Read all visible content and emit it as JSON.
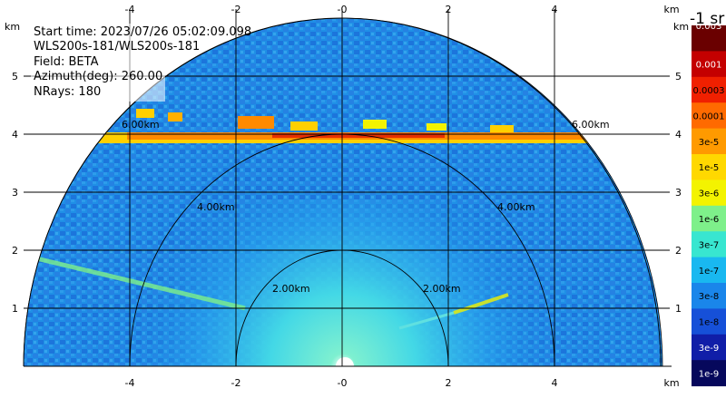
{
  "info": {
    "start_time": "Start time: 2023/07/26 05:02:09.098",
    "instrument": "WLS200s-181/WLS200s-181",
    "field": "Field: BETA",
    "azimuth": "Azimuth(deg): 260.00",
    "nrays": "NRays: 180"
  },
  "axes": {
    "unit": "km",
    "x_ticks": [
      "-4",
      "-2",
      "-0",
      "2",
      "4"
    ],
    "y_ticks": [
      "5",
      "4",
      "3",
      "2",
      "1"
    ]
  },
  "range_rings": {
    "ring_2": "2.00km",
    "ring_4": "4.00km",
    "ring_6": "6.00km"
  },
  "colorbar": {
    "units": "-1 sr",
    "labels": [
      "0.003",
      "0.001",
      "0.0003",
      "0.0001",
      "3e-5",
      "1e-5",
      "3e-6",
      "1e-6",
      "3e-7",
      "1e-7",
      "3e-8",
      "1e-8",
      "3e-9",
      "1e-9"
    ],
    "colors": [
      "#6a0000",
      "#c40000",
      "#f02000",
      "#ff6a00",
      "#ff9a00",
      "#ffd800",
      "#f3f300",
      "#7ef08a",
      "#38e6d0",
      "#19b8f0",
      "#1a86ea",
      "#1650d8",
      "#101ea8",
      "#06085c"
    ]
  },
  "scene_colors": {
    "background": "#1f8fe6",
    "near_field": "#5fe0e0",
    "cloud_layer": "#ffb000"
  }
}
